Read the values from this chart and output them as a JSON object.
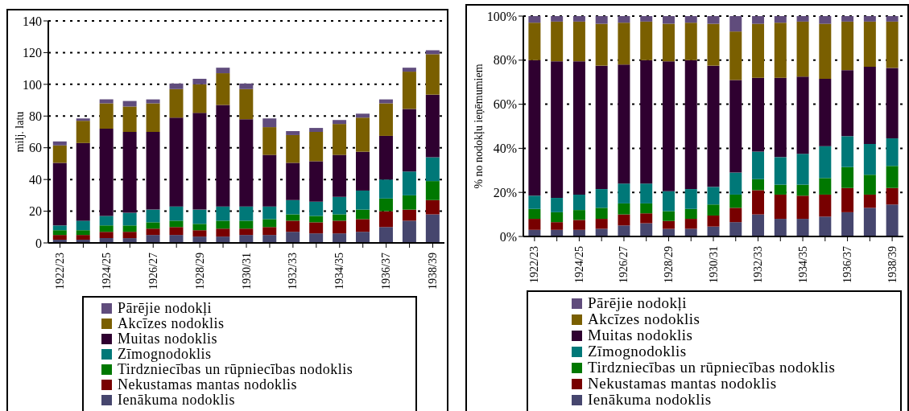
{
  "chart_data": [
    {
      "type": "bar",
      "stacked": true,
      "ylabel": "milj. latu",
      "categories": [
        "1922/23",
        null,
        "1924/25",
        null,
        "1926/27",
        null,
        "1928/29",
        null,
        "1930/31",
        null,
        "1932/33",
        null,
        "1934/35",
        null,
        "1936/37",
        null,
        "1938/39"
      ],
      "series": [
        {
          "name": "Ienākuma nodoklis",
          "color": "#46466e",
          "values": [
            2,
            2,
            3,
            3,
            5,
            5,
            4,
            4,
            5,
            5,
            7,
            6,
            6,
            7,
            10,
            14,
            18
          ]
        },
        {
          "name": "Nekustamas mantas nodoklis",
          "color": "#780000",
          "values": [
            3,
            3,
            4,
            4,
            4,
            5,
            4,
            5,
            4,
            5,
            7,
            7,
            8,
            8,
            10,
            7,
            9
          ]
        },
        {
          "name": "Tirdzniecības un rūpniecības nodoklis",
          "color": "#007800",
          "values": [
            3,
            3,
            4,
            4,
            4,
            4,
            4,
            5,
            5,
            5,
            4,
            4,
            4,
            6,
            8,
            9,
            12
          ]
        },
        {
          "name": "Zīmognodoklis",
          "color": "#007878",
          "values": [
            3,
            6,
            6,
            8,
            8,
            9,
            9,
            9,
            9,
            8,
            9,
            9,
            11,
            12,
            12,
            15,
            15
          ]
        },
        {
          "name": "Muitas nodoklis",
          "color": "#2f0030",
          "values": [
            39.5,
            49,
            55,
            51,
            49,
            56,
            61,
            64,
            55,
            32.5,
            23.5,
            25.5,
            26.5,
            24.5,
            27.5,
            39.5,
            39.5
          ]
        },
        {
          "name": "Akcīzes nodoklis",
          "color": "#7a5f00",
          "values": [
            11,
            14,
            16,
            16,
            18,
            18,
            18,
            20,
            19,
            17.5,
            17.5,
            18.5,
            19.5,
            21.5,
            20.5,
            23.5,
            25.5
          ]
        },
        {
          "name": "Pārējie nodokļi",
          "color": "#604c7c",
          "values": [
            2.5,
            1.5,
            2.5,
            3.5,
            2.5,
            3.5,
            3.5,
            3.5,
            3.5,
            5.5,
            2.5,
            2.5,
            2.5,
            2.5,
            2.5,
            2.5,
            2.5
          ]
        }
      ],
      "ylim": [
        0,
        140
      ],
      "yticks": [
        0,
        20,
        40,
        60,
        80,
        100,
        120,
        140
      ],
      "grid": "y",
      "legend": "bottom"
    },
    {
      "type": "bar",
      "stacked": true,
      "ylabel": "% no nodokļu ieņēmumiem",
      "categories": [
        "1922/23",
        null,
        "1924/25",
        null,
        "1926/27",
        null,
        "1928/29",
        null,
        "1930/31",
        null,
        "1932/33",
        null,
        "1934/35",
        null,
        "1936/37",
        null,
        "1938/39"
      ],
      "series": [
        {
          "name": "Ienākuma nodoklis",
          "color": "#46466e",
          "values": [
            3,
            3,
            3,
            3.5,
            5,
            6,
            3.5,
            3.5,
            4.5,
            6.5,
            10,
            8,
            8,
            9,
            11,
            13,
            14.5
          ]
        },
        {
          "name": "Nekustamas mantas nodoklis",
          "color": "#780000",
          "values": [
            5,
            3.5,
            4.5,
            4.5,
            5,
            4.5,
            3.5,
            4.5,
            5,
            6.5,
            11,
            11,
            10.5,
            10,
            11,
            6,
            7.5
          ]
        },
        {
          "name": "Tirdzniecības un rūpniecības nodoklis",
          "color": "#007800",
          "values": [
            4.5,
            4.5,
            4.5,
            5,
            5,
            4.5,
            4.5,
            4.5,
            5,
            6,
            5,
            4.5,
            5,
            7.5,
            9.5,
            9,
            10
          ]
        },
        {
          "name": "Zīmognodoklis",
          "color": "#007878",
          "values": [
            6,
            6.5,
            7,
            8.5,
            9,
            9,
            9,
            9,
            8,
            10,
            12.5,
            12.5,
            14,
            14.5,
            14,
            14,
            12.5
          ]
        },
        {
          "name": "Muitas nodoklis",
          "color": "#2f0030",
          "values": [
            61.5,
            62,
            60.5,
            56,
            54,
            56,
            59,
            58.5,
            55,
            42,
            33.5,
            36,
            35,
            30.5,
            30,
            35,
            32
          ]
        },
        {
          "name": "Akcīzes nodoklis",
          "color": "#7a5f00",
          "values": [
            17,
            18,
            18,
            19,
            19,
            17.5,
            17,
            17,
            19,
            22,
            24.5,
            25,
            25,
            25,
            22,
            20.5,
            21
          ]
        },
        {
          "name": "Pārējie nodokļi",
          "color": "#604c7c",
          "values": [
            3,
            2.5,
            2.5,
            3.5,
            3,
            2.5,
            3.5,
            3,
            3.5,
            7,
            3.5,
            3,
            2.5,
            3.5,
            2.5,
            2.5,
            2.5
          ]
        }
      ],
      "ylim": [
        0,
        100
      ],
      "yticks": [
        {
          "value": 0,
          "label": "0%"
        },
        {
          "value": 20,
          "label": "20%"
        },
        {
          "value": 40,
          "label": "40%"
        },
        {
          "value": 60,
          "label": "60%"
        },
        {
          "value": 80,
          "label": "80%"
        },
        {
          "value": 100,
          "label": "100%"
        }
      ],
      "grid": "y",
      "legend": "bottom"
    }
  ]
}
